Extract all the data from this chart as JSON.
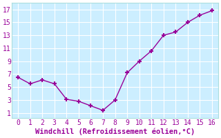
{
  "x": [
    0,
    1,
    2,
    3,
    4,
    5,
    6,
    7,
    8,
    9,
    10,
    11,
    12,
    13,
    14,
    15,
    16
  ],
  "y": [
    6.5,
    5.5,
    6.1,
    5.5,
    3.1,
    2.8,
    2.1,
    1.4,
    3.0,
    7.2,
    9.0,
    10.6,
    13.0,
    13.5,
    15.0,
    16.1,
    16.8
  ],
  "line_color": "#990099",
  "marker": "+",
  "marker_size": 5,
  "marker_linewidth": 1.5,
  "bg_color": "#cceeff",
  "fig_bg_color": "#ffffff",
  "grid_color": "#aadddd",
  "xlabel": "Windchill (Refroidissement éolien,°C)",
  "xlabel_color": "#990099",
  "xlabel_fontsize": 7.5,
  "yticks": [
    1,
    3,
    5,
    7,
    9,
    11,
    13,
    15,
    17
  ],
  "xticks": [
    0,
    1,
    2,
    3,
    4,
    5,
    6,
    7,
    8,
    9,
    10,
    11,
    12,
    13,
    14,
    15,
    16
  ],
  "ylim": [
    0.2,
    18.0
  ],
  "xlim": [
    -0.5,
    16.5
  ],
  "tick_fontsize": 7,
  "tick_color": "#990099",
  "linewidth": 1.0
}
